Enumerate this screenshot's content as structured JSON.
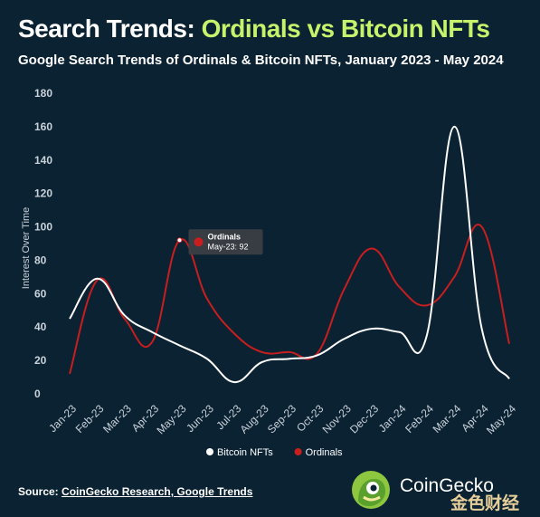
{
  "header": {
    "title_prefix": "Search Trends: ",
    "title_accent": "Ordinals vs Bitcoin NFTs",
    "subtitle": "Google Search Trends of Ordinals & Bitcoin NFTs, January 2023 - May 2024"
  },
  "colors": {
    "background": "#0b2233",
    "accent": "#c7f26b",
    "bitcoin_nfts": "#ffffff",
    "ordinals": "#c81e1e",
    "tick_text": "#c9d2d9"
  },
  "chart_data": {
    "type": "line",
    "title": "Google Search Trends of Ordinals & Bitcoin NFTs, January 2023 - May 2024",
    "xlabel": "",
    "ylabel": "Interest Over Time",
    "ylim": [
      0,
      180
    ],
    "yticks": [
      0,
      20,
      40,
      60,
      80,
      100,
      120,
      140,
      160,
      180
    ],
    "categories": [
      "Jan-23",
      "Feb-23",
      "Mar-23",
      "Apr-23",
      "May-23",
      "Jun-23",
      "Jul-23",
      "Aug-23",
      "Sep-23",
      "Oct-23",
      "Nov-23",
      "Dec-23",
      "Jan-24",
      "Feb-24",
      "Mar-24",
      "Apr-24",
      "May-24"
    ],
    "grid": false,
    "legend": "bottom-center",
    "series": [
      {
        "name": "Bitcoin NFTs",
        "color": "#ffffff",
        "values": [
          45,
          69,
          47,
          37,
          29,
          21,
          7,
          19,
          21,
          23,
          33,
          39,
          37,
          35,
          160,
          39,
          9
        ]
      },
      {
        "name": "Ordinals",
        "color": "#c81e1e",
        "values": [
          12,
          68,
          45,
          31,
          92,
          57,
          36,
          25,
          25,
          24,
          63,
          87,
          64,
          53,
          70,
          100,
          30
        ]
      }
    ],
    "tooltip": {
      "series": "Ordinals",
      "label": "Ordinals",
      "value_text": "May-23: 92",
      "index": 4,
      "value": 92
    }
  },
  "footer": {
    "source_label": "Source:",
    "source_links": "CoinGecko Research, Google Trends",
    "brand": "CoinGecko",
    "watermark": "金色财经"
  }
}
